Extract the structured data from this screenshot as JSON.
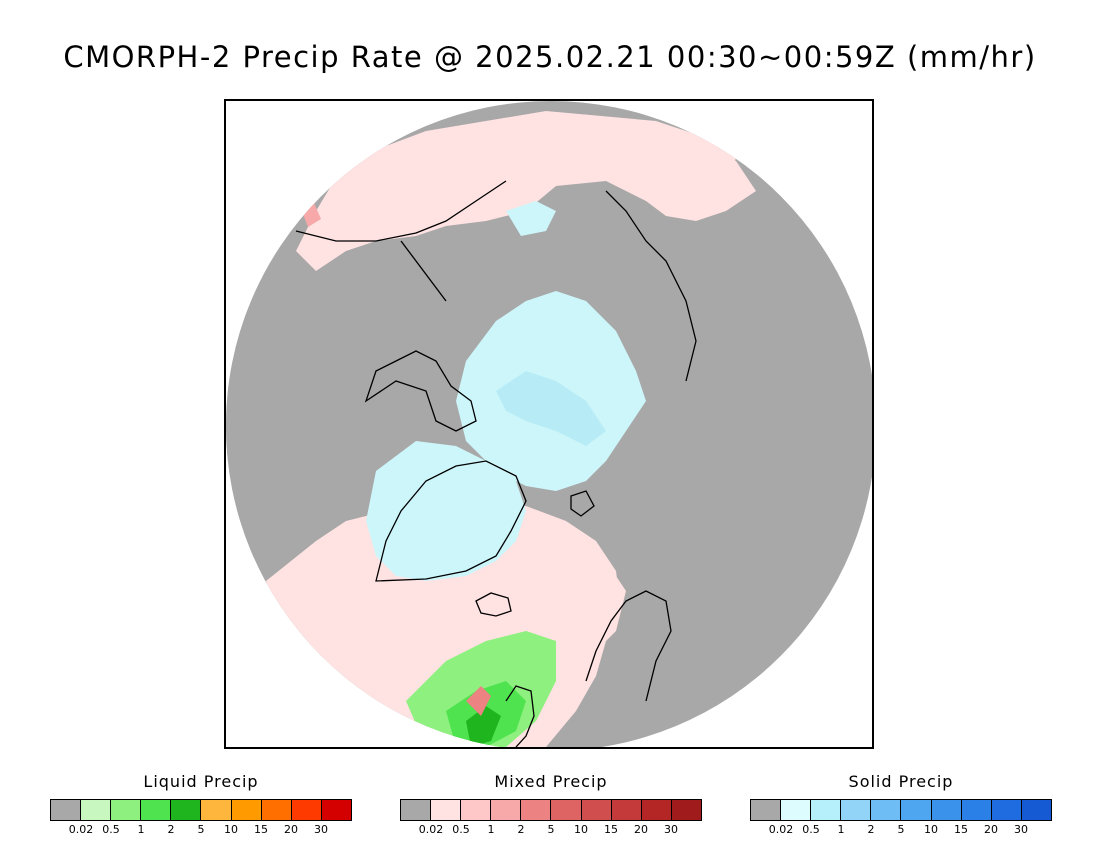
{
  "title": "CMORPH-2 Precip Rate @ 2025.02.21 00:30~00:59Z (mm/hr)",
  "colors": {
    "no_data_gray": "#a8a8a8",
    "light_pink": "#ffe2e2",
    "light_cyan": "#cdf6fb",
    "ice_cyan": "#b7ecf6",
    "liquid_green": "#4fe34f",
    "coast": "#000000"
  },
  "legends": [
    {
      "title": "Liquid Precip",
      "colors": [
        "#a8a8a8",
        "#c8f8c0",
        "#8ef07e",
        "#4fe34f",
        "#1fb51f",
        "#ffb63c",
        "#ff9a00",
        "#ff6f00",
        "#ff3a00",
        "#d40000"
      ],
      "ticks": [
        "0.02",
        "0.5",
        "1",
        "2",
        "5",
        "10",
        "15",
        "20",
        "30"
      ]
    },
    {
      "title": "Mixed Precip",
      "colors": [
        "#a8a8a8",
        "#ffe2e2",
        "#ffc8c8",
        "#f7a8a8",
        "#ec8282",
        "#de6464",
        "#d04e4e",
        "#c43a3a",
        "#b42626",
        "#a01c1c"
      ],
      "ticks": [
        "0.02",
        "0.5",
        "1",
        "2",
        "5",
        "10",
        "15",
        "20",
        "30"
      ]
    },
    {
      "title": "Solid Precip",
      "colors": [
        "#a8a8a8",
        "#ddfcfd",
        "#b6f0fa",
        "#92d4f8",
        "#6ebef5",
        "#4ea6f0",
        "#3a92ea",
        "#2a80e6",
        "#1e6ce0",
        "#155ad2"
      ],
      "ticks": [
        "0.02",
        "0.5",
        "1",
        "2",
        "5",
        "10",
        "15",
        "20",
        "30"
      ]
    }
  ]
}
